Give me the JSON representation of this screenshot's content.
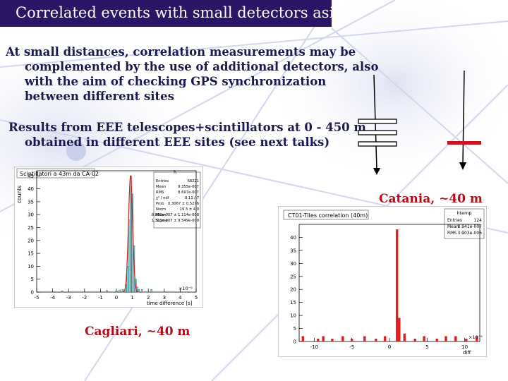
{
  "slide": {
    "title": "Correlated events with small detectors aside",
    "bullet1": [
      "At small distances, correlation measurements may be",
      "complemented by the use of additional detectors, also",
      "with the aim of checking GPS synchronization",
      "between different sites"
    ],
    "bullet2": [
      "Results from EEE telescopes+scintillators at 0 - 450 m",
      "obtained in different EEE sites (see next talks)"
    ],
    "label_cagliari": "Cagliari, ~40 m",
    "label_catania": "Catania, ~40 m"
  },
  "hist_left": {
    "title": "Scintillatori a 43m da CA-02",
    "stat_name": "h",
    "ylabel": "counts",
    "xlabel": "time difference   [s]",
    "x_exp": "×10⁻⁶",
    "stats": [
      {
        "k": "Entries",
        "v": "68221"
      },
      {
        "k": "Mean",
        "v": "9.355e-007"
      },
      {
        "k": "RMS",
        "v": "8.697e-007"
      },
      {
        "k": "χ² / ndf",
        "v": "8.11 / 7"
      },
      {
        "k": "Prob",
        "v": "0.3067 ± 0.5276"
      },
      {
        "k": "Norm",
        "v": "19.3 ± 4.9"
      },
      {
        "k": "Mean",
        "v": "8.882e-007 ± 1.114e-008"
      },
      {
        "k": "Sigma",
        "v": "1.311e-007 ± 9.549e-009"
      }
    ],
    "xticks": [
      "-5",
      "-4",
      "-3",
      "-2",
      "-1",
      "0",
      "1",
      "2",
      "3",
      "4",
      "5"
    ],
    "yticks": [
      "0",
      "5",
      "10",
      "15",
      "20",
      "25",
      "30",
      "35",
      "40",
      "45"
    ]
  },
  "hist_right": {
    "title": "CT01-Tiles correlation (40m)",
    "stat_name": "htemp",
    "xlabel": "diff",
    "x_exp": "×10⁻⁶",
    "stats": [
      {
        "k": "Entries",
        "v": "124"
      },
      {
        "k": "Mean",
        "v": "8.941e-007"
      },
      {
        "k": "RMS",
        "v": "3.903e-006"
      }
    ],
    "xticks": [
      "-10",
      "-5",
      "0",
      "5",
      "10"
    ],
    "yticks": [
      "0",
      "5",
      "10",
      "15",
      "20",
      "25",
      "30",
      "35",
      "40"
    ]
  },
  "chart_data": [
    {
      "type": "bar",
      "title": "Scintillatori a 43m da CA-02",
      "xlabel": "time difference [s]",
      "ylabel": "counts",
      "x_unit": "×10^-6 s",
      "xlim": [
        -5,
        5
      ],
      "ylim": [
        0,
        47
      ],
      "x": [
        0.0,
        0.2,
        0.4,
        0.6,
        0.7,
        0.8,
        0.9,
        1.0,
        1.1,
        1.2,
        1.3,
        1.4,
        1.6,
        2.2,
        -3.4,
        -0.6
      ],
      "values": [
        0.5,
        0.8,
        1,
        3,
        10,
        28,
        45,
        38,
        18,
        5,
        2,
        1,
        1,
        1,
        0.5,
        0.6
      ],
      "fit_gaussian": {
        "norm": 19.3,
        "mean": 0.8882,
        "sigma": 0.1311
      },
      "grid": false,
      "colors": {
        "fill": "#7fd8e0",
        "fit": "#d62020"
      }
    },
    {
      "type": "bar",
      "title": "CT01-Tiles correlation (40m)",
      "xlabel": "diff",
      "x_unit": "×10^-6",
      "xlim": [
        -12,
        12
      ],
      "ylim": [
        0,
        45
      ],
      "x": [
        -11.5,
        -9.5,
        -8.8,
        -7.6,
        -6.2,
        -5.0,
        -3.3,
        -1.8,
        -0.6,
        1.0,
        1.3,
        2.0,
        3.4,
        4.6,
        6.3,
        7.5,
        8.8,
        10.2,
        11.6
      ],
      "values": [
        2,
        1,
        2,
        1,
        2,
        1,
        2,
        1,
        2,
        43,
        9,
        3,
        1,
        2,
        1,
        2,
        2,
        1,
        2
      ],
      "grid": false,
      "colors": {
        "fill": "#e02020"
      }
    }
  ]
}
